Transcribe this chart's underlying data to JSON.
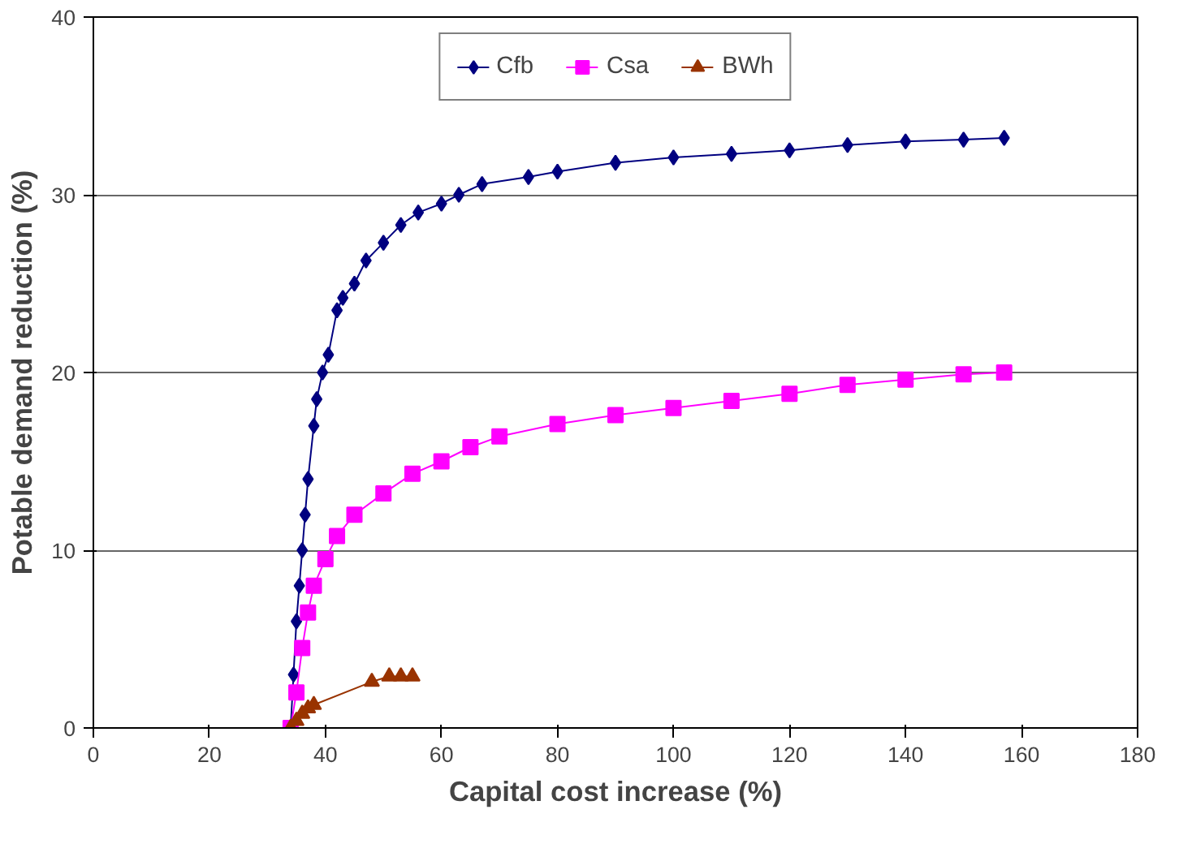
{
  "chart_data": {
    "type": "line",
    "xlabel": "Capital cost increase (%)",
    "ylabel": "Potable demand reduction (%)",
    "xlim": [
      0,
      180
    ],
    "xticks": [
      0,
      20,
      40,
      60,
      80,
      100,
      120,
      140,
      160,
      180
    ],
    "ylim": [
      0,
      40
    ],
    "yticks": [
      0,
      10,
      20,
      30,
      40
    ],
    "grid": "y",
    "legend": "top",
    "series": [
      {
        "name": "Cfb",
        "color": "#000080",
        "marker": "diamond",
        "x": [
          34,
          34.5,
          35,
          35.5,
          36,
          36.5,
          37,
          38,
          38.5,
          39.5,
          40.5,
          42,
          43,
          45,
          47,
          50,
          53,
          56,
          60,
          63,
          67,
          75,
          80,
          90,
          100,
          110,
          120,
          130,
          140,
          150,
          157
        ],
        "values": [
          0,
          3,
          6,
          8,
          10,
          12,
          14,
          17,
          18.5,
          20,
          21,
          23.5,
          24.2,
          25,
          26.3,
          27.3,
          28.3,
          29,
          29.5,
          30,
          30.6,
          31,
          31.3,
          31.8,
          32.1,
          32.3,
          32.5,
          32.8,
          33,
          33.1,
          33.2
        ]
      },
      {
        "name": "Csa",
        "color": "#ff00ff",
        "marker": "square",
        "x": [
          34,
          35,
          36,
          37,
          38,
          40,
          42,
          45,
          50,
          55,
          60,
          65,
          70,
          80,
          90,
          100,
          110,
          120,
          130,
          140,
          150,
          157
        ],
        "values": [
          0,
          2,
          4.5,
          6.5,
          8,
          9.5,
          10.8,
          12,
          13.2,
          14.3,
          15,
          15.8,
          16.4,
          17.1,
          17.6,
          18,
          18.4,
          18.8,
          19.3,
          19.6,
          19.9,
          20
        ]
      },
      {
        "name": "BWh",
        "color": "#993300",
        "marker": "triangle",
        "x": [
          34,
          35,
          36,
          37,
          38,
          48,
          51,
          53,
          55
        ],
        "values": [
          0,
          0.4,
          0.8,
          1.1,
          1.3,
          2.6,
          2.9,
          2.9,
          2.9
        ]
      }
    ]
  }
}
